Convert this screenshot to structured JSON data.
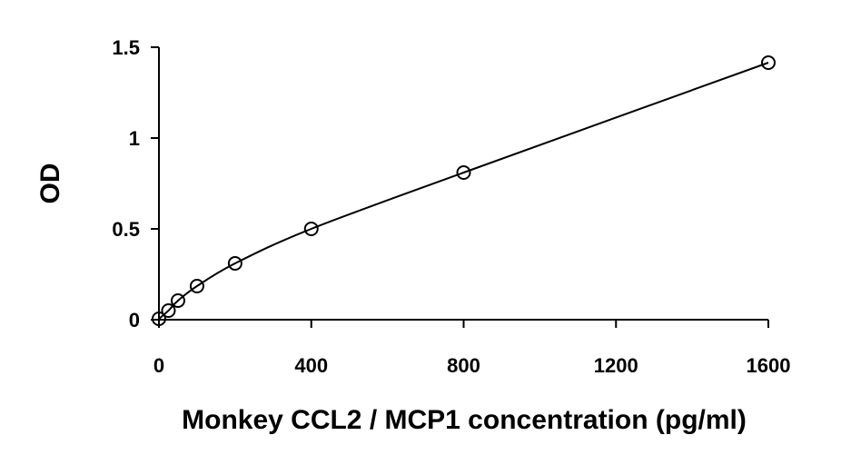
{
  "chart_data": {
    "type": "scatter",
    "title": "",
    "xlabel": "Monkey CCL2 / MCP1 concentration (pg/ml)",
    "ylabel": "OD",
    "xlim": [
      0,
      1600
    ],
    "ylim": [
      0,
      1.5
    ],
    "x_ticks": [
      "0",
      "400",
      "800",
      "1200",
      "1600"
    ],
    "y_ticks": [
      "0",
      "0.5",
      "1",
      "1.5"
    ],
    "grid": false,
    "legend": "none",
    "fit_line": "smooth curve through points",
    "series": [
      {
        "x": [
          0,
          25,
          50,
          100,
          200,
          400,
          800,
          1600
        ],
        "y": [
          0.005,
          0.05,
          0.105,
          0.185,
          0.31,
          0.5,
          0.81,
          1.415
        ]
      }
    ],
    "colors": {
      "line": "#000000",
      "marker": "#000000",
      "axis": "#000000"
    }
  }
}
